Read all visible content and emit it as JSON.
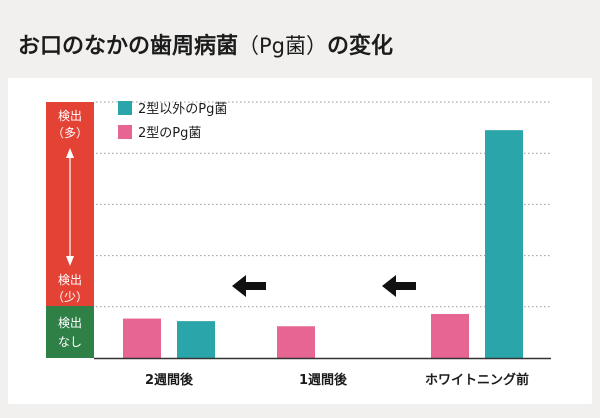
{
  "title": {
    "main": "お口のなかの歯周病菌",
    "paren_open": "（",
    "pg": "Pg菌",
    "paren_close": "）",
    "suffix": "の変化"
  },
  "colors": {
    "teal": "#2aa6aa",
    "pink": "#e66593",
    "red": "#e54236",
    "green": "#2f8047",
    "grid": "#9a9a9a",
    "axis": "#333333",
    "arrow": "#111111"
  },
  "chart_data": {
    "type": "bar",
    "categories": [
      "2週間後",
      "1週間後",
      "ホワイトニング前"
    ],
    "series": [
      {
        "name": "2型のPg菌",
        "color": "#e66593",
        "values": [
          0.77,
          0.62,
          0.86
        ]
      },
      {
        "name": "2型以外のPg菌",
        "color": "#2aa6aa",
        "values": [
          0.72,
          0,
          4.45
        ]
      }
    ],
    "series_values_note": "",
    "ylim": [
      0,
      5
    ],
    "grid": true,
    "legend_position": "top-left",
    "y_axis_labels": {
      "high_line1": "検出",
      "high_line2": "（多）",
      "low_line1": "検出",
      "low_line2": "（少）",
      "none_line1": "検出",
      "none_line2": "なし"
    },
    "annotations": [
      "←",
      "←"
    ]
  }
}
